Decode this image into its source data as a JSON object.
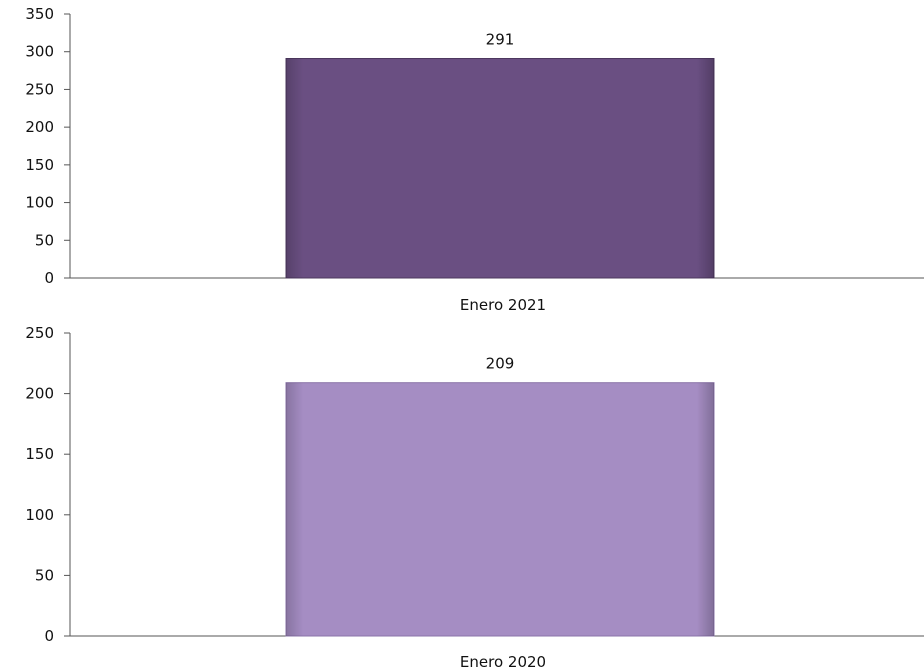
{
  "chart_data": [
    {
      "type": "bar",
      "categories": [
        "Enero 2021"
      ],
      "values": [
        291
      ],
      "data_labels": [
        "291"
      ],
      "ylim": [
        0,
        350
      ],
      "yticks": [
        0,
        50,
        100,
        150,
        200,
        250,
        300,
        350
      ],
      "grid": false,
      "legend": "none",
      "bar_color": "#6a4f82"
    },
    {
      "type": "bar",
      "categories": [
        "Enero 2020"
      ],
      "values": [
        209
      ],
      "data_labels": [
        "209"
      ],
      "ylim": [
        0,
        250
      ],
      "yticks": [
        0,
        50,
        100,
        150,
        200,
        250
      ],
      "grid": false,
      "legend": "none",
      "bar_color": "#a58dc3"
    }
  ]
}
